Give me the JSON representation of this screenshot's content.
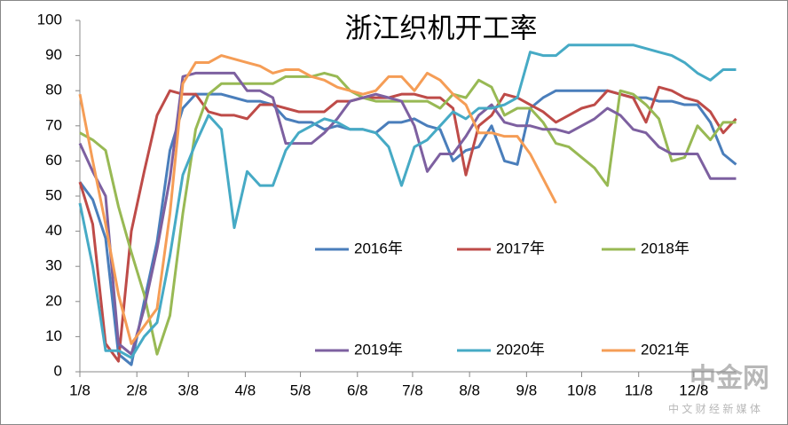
{
  "chart_data": {
    "type": "line",
    "title": "浙江织机开工率",
    "x": [
      0,
      7,
      14,
      21,
      28,
      35,
      42,
      49,
      56,
      63,
      70,
      77,
      84,
      91,
      98,
      105,
      112,
      119,
      126,
      133,
      140,
      147,
      154,
      161,
      168,
      175,
      182,
      189,
      196,
      203,
      210,
      217,
      224,
      231,
      238,
      245,
      252,
      259,
      266,
      273,
      280,
      287,
      294,
      301,
      308,
      315,
      322,
      329,
      336,
      343,
      350,
      357
    ],
    "series": [
      {
        "name": "2016年",
        "color": "#4a7ebb",
        "values": [
          54,
          49,
          38,
          5,
          2,
          20,
          37,
          63,
          75,
          79,
          79,
          79,
          78,
          77,
          77,
          76,
          72,
          71,
          71,
          69,
          70,
          69,
          69,
          68,
          71,
          71,
          72,
          70,
          69,
          60,
          63,
          64,
          70,
          60,
          59,
          75,
          78,
          80,
          80,
          80,
          80,
          80,
          79,
          78,
          78,
          77,
          77,
          76,
          76,
          71,
          62,
          59
        ]
      },
      {
        "name": "2017年",
        "color": "#be4b48",
        "values": [
          54,
          42,
          8,
          3,
          40,
          57,
          73,
          80,
          79,
          79,
          74,
          73,
          73,
          72,
          76,
          76,
          75,
          74,
          74,
          74,
          77,
          77,
          78,
          78,
          78,
          79,
          79,
          78,
          78,
          75,
          56,
          70,
          73,
          79,
          78,
          76,
          74,
          71,
          73,
          75,
          76,
          80,
          79,
          78,
          71,
          81,
          80,
          78,
          77,
          74,
          68,
          72
        ]
      },
      {
        "name": "2018年",
        "color": "#98b954",
        "values": [
          68,
          66,
          63,
          47,
          34,
          22,
          5,
          16,
          45,
          69,
          79,
          82,
          82,
          82,
          82,
          82,
          84,
          84,
          84,
          85,
          84,
          80,
          78,
          77,
          77,
          77,
          77,
          77,
          75,
          79,
          78,
          83,
          81,
          73,
          75,
          75,
          71,
          65,
          64,
          61,
          58,
          53,
          80,
          79,
          76,
          72,
          60,
          61,
          70,
          66,
          71,
          71
        ]
      },
      {
        "name": "2019年",
        "color": "#7d60a0",
        "values": [
          65,
          57,
          50,
          8,
          5,
          18,
          35,
          55,
          84,
          85,
          85,
          85,
          85,
          80,
          80,
          78,
          65,
          65,
          65,
          68,
          72,
          77,
          78,
          79,
          78,
          77,
          70,
          57,
          62,
          62,
          67,
          73,
          76,
          71,
          70,
          70,
          69,
          69,
          68,
          70,
          72,
          75,
          73,
          69,
          68,
          64,
          62,
          62,
          62,
          55,
          55,
          55
        ]
      },
      {
        "name": "2020年",
        "color": "#46aac5",
        "values": [
          48,
          30,
          6,
          6,
          4,
          10,
          14,
          33,
          56,
          65,
          73,
          69,
          41,
          57,
          53,
          53,
          63,
          68,
          70,
          72,
          71,
          69,
          69,
          68,
          64,
          53,
          64,
          66,
          70,
          74,
          72,
          75,
          75,
          76,
          78,
          91,
          90,
          90,
          93,
          93,
          93,
          93,
          93,
          93,
          92,
          91,
          90,
          88,
          85,
          83,
          86,
          86
        ]
      },
      {
        "name": "2021年",
        "color": "#f59d56",
        "values": [
          79,
          60,
          42,
          22,
          8,
          13,
          18,
          45,
          82,
          88,
          88,
          90,
          89,
          88,
          87,
          85,
          86,
          86,
          84,
          83,
          81,
          80,
          79,
          80,
          84,
          84,
          80,
          85,
          83,
          79,
          76,
          68,
          68,
          67,
          67,
          62,
          55,
          48,
          null,
          null,
          null,
          null,
          null,
          null,
          null,
          null,
          null,
          null,
          null,
          null,
          null,
          null
        ]
      }
    ],
    "xlim": [
      0,
      357
    ],
    "xticks": [
      {
        "value": 0,
        "label": "1/8"
      },
      {
        "value": 31,
        "label": "2/8"
      },
      {
        "value": 59,
        "label": "3/8"
      },
      {
        "value": 90,
        "label": "4/8"
      },
      {
        "value": 120,
        "label": "5/8"
      },
      {
        "value": 151,
        "label": "6/8"
      },
      {
        "value": 181,
        "label": "7/8"
      },
      {
        "value": 212,
        "label": "8/8"
      },
      {
        "value": 243,
        "label": "9/8"
      },
      {
        "value": 273,
        "label": "10/8"
      },
      {
        "value": 304,
        "label": "11/8"
      },
      {
        "value": 334,
        "label": "12/8"
      }
    ],
    "ylim": [
      0,
      100
    ],
    "yticks": [
      0,
      10,
      20,
      30,
      40,
      50,
      60,
      70,
      80,
      90,
      100
    ],
    "grid": false,
    "watermark": {
      "name": "中金网",
      "tagline": "中 文 财 经 新 媒 体"
    }
  }
}
